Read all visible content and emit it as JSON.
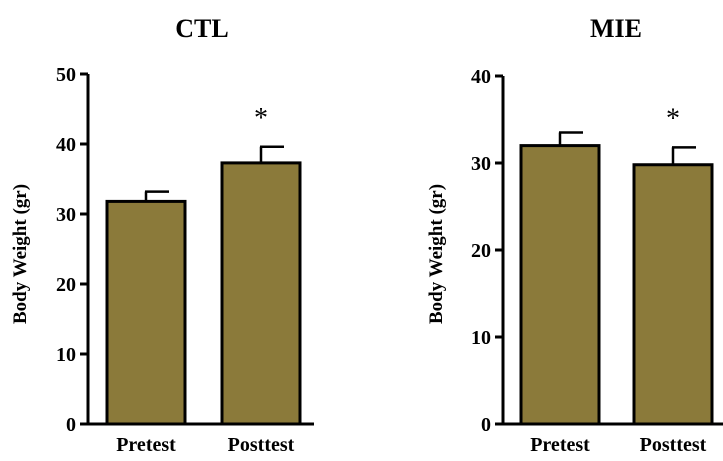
{
  "chart_data": [
    {
      "type": "bar",
      "title": "CTL",
      "ylabel": "Body Weight (gr)",
      "xlabel": "",
      "ylim": [
        0,
        50
      ],
      "yticks": [
        0,
        10,
        20,
        30,
        40,
        50
      ],
      "categories": [
        "Pretest",
        "Posttest"
      ],
      "values": [
        31.8,
        37.3
      ],
      "errors": [
        1.4,
        2.3
      ],
      "annotations": [
        "",
        "*"
      ],
      "bar_color": "#8b7a3a",
      "grid": false
    },
    {
      "type": "bar",
      "title": "MIE",
      "ylabel": "Body Weight (gr)",
      "xlabel": "",
      "ylim": [
        0,
        40
      ],
      "yticks": [
        0,
        10,
        20,
        30,
        40
      ],
      "categories": [
        "Pretest",
        "Posttest"
      ],
      "values": [
        32.0,
        29.8
      ],
      "errors": [
        1.5,
        2.0
      ],
      "annotations": [
        "",
        "*"
      ],
      "bar_color": "#8b7a3a",
      "grid": false
    }
  ]
}
